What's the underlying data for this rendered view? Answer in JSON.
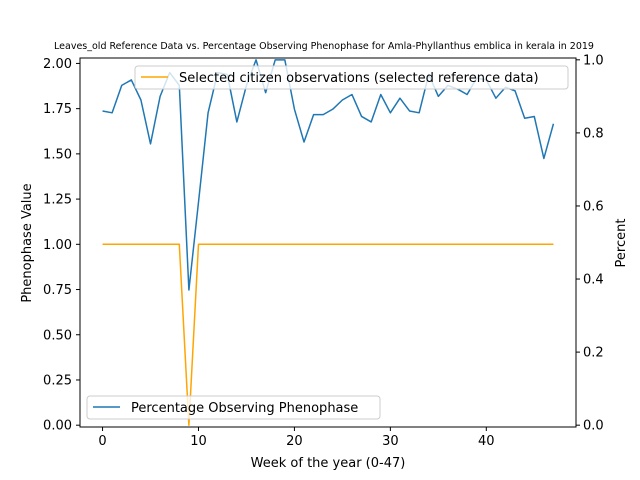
{
  "chart_data": {
    "type": "line",
    "title": "Leaves_old Reference Data vs. Percentage Observing Phenophase for Amla-Phyllanthus emblica in kerala in 2019",
    "xlabel": "Week of the year (0-47)",
    "ylabel_left": "Phenophase Value",
    "ylabel_right": "Percent",
    "xlim": [
      -2.35,
      49.35
    ],
    "ylim_left": [
      -0.01,
      2.03
    ],
    "ylim_right": [
      -0.005,
      1.005
    ],
    "x_ticks": [
      0,
      10,
      20,
      30,
      40
    ],
    "y_ticks_left": [
      "0.00",
      "0.25",
      "0.50",
      "0.75",
      "1.00",
      "1.25",
      "1.50",
      "1.75",
      "2.00"
    ],
    "y_ticks_right": [
      "0.0",
      "0.2",
      "0.4",
      "0.6",
      "0.8",
      "1.0"
    ],
    "series": [
      {
        "name": "Selected citizen observations (selected reference data)",
        "axis": "left",
        "color": "#ffa500",
        "x": [
          0,
          1,
          2,
          3,
          4,
          5,
          6,
          7,
          8,
          9,
          10,
          11,
          12,
          13,
          14,
          15,
          16,
          17,
          18,
          19,
          20,
          21,
          22,
          23,
          24,
          25,
          26,
          27,
          28,
          29,
          30,
          31,
          32,
          33,
          34,
          35,
          36,
          37,
          38,
          39,
          40,
          41,
          42,
          43,
          44,
          45,
          46,
          47
        ],
        "values": [
          1,
          1,
          1,
          1,
          1,
          1,
          1,
          1,
          1,
          0,
          1,
          1,
          1,
          1,
          1,
          1,
          1,
          1,
          1,
          1,
          1,
          1,
          1,
          1,
          1,
          1,
          1,
          1,
          1,
          1,
          1,
          1,
          1,
          1,
          1,
          1,
          1,
          1,
          1,
          1,
          1,
          1,
          1,
          1,
          1,
          1,
          1,
          1
        ]
      },
      {
        "name": "Percentage Observing Phenophase",
        "axis": "right",
        "color": "#1f77b4",
        "x": [
          0,
          1,
          2,
          3,
          4,
          5,
          6,
          7,
          8,
          9,
          10,
          11,
          12,
          13,
          14,
          15,
          16,
          17,
          18,
          19,
          20,
          21,
          22,
          23,
          24,
          25,
          26,
          27,
          28,
          29,
          30,
          31,
          32,
          33,
          34,
          35,
          36,
          37,
          38,
          39,
          40,
          41,
          42,
          43,
          44,
          45,
          46,
          47
        ],
        "values": [
          0.86,
          0.855,
          0.93,
          0.945,
          0.89,
          0.77,
          0.9,
          0.965,
          0.93,
          0.37,
          0.61,
          0.855,
          0.965,
          0.96,
          0.83,
          0.93,
          1.0,
          0.91,
          1.0,
          1.0,
          0.865,
          0.775,
          0.85,
          0.85,
          0.865,
          0.89,
          0.905,
          0.845,
          0.83,
          0.905,
          0.855,
          0.895,
          0.86,
          0.855,
          0.96,
          0.9,
          0.93,
          0.92,
          0.905,
          0.95,
          0.945,
          0.895,
          0.925,
          0.915,
          0.84,
          0.845,
          0.73,
          0.825
        ]
      }
    ],
    "legend_top": {
      "position": "upper-right",
      "label": "Selected citizen observations (selected reference data)",
      "color": "#ffa500"
    },
    "legend_bottom": {
      "position": "lower-left",
      "label": "Percentage Observing Phenophase",
      "color": "#1f77b4"
    },
    "grid": false
  }
}
